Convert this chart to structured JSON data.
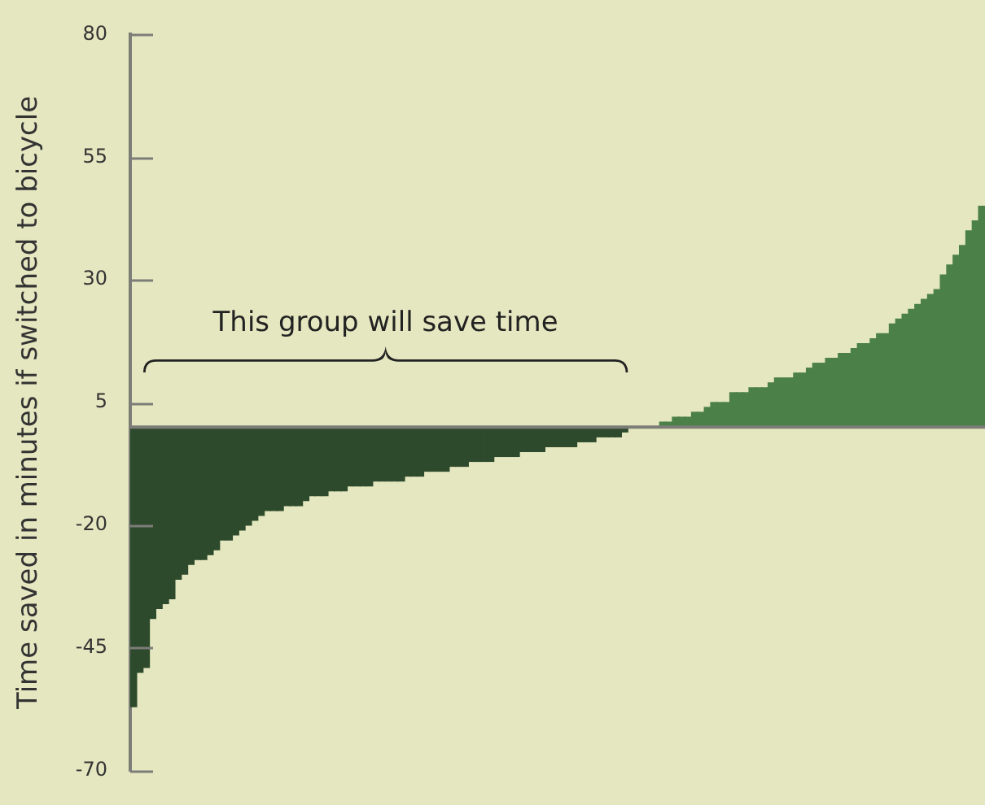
{
  "chart_data": {
    "type": "bar",
    "ylabel": "Time saved in minutes if switched to bicycle",
    "annotations": [
      "This group will save time"
    ],
    "categories": [
      null,
      null,
      null,
      null,
      null,
      null,
      null,
      null,
      null,
      null,
      null,
      null,
      null,
      null,
      null,
      null,
      null,
      null,
      null,
      null,
      null,
      null,
      null,
      null,
      null,
      null,
      null,
      null,
      null,
      null,
      null,
      null,
      null,
      null,
      null,
      null,
      null,
      null,
      null,
      null,
      null,
      null,
      null,
      null,
      null,
      null,
      null,
      null,
      null,
      null,
      null,
      null,
      null,
      null,
      null,
      null,
      null,
      null,
      null,
      null,
      null,
      null,
      null,
      null,
      null,
      null,
      null,
      null,
      null,
      null,
      null,
      null,
      null,
      null,
      null,
      null,
      null,
      null,
      null,
      null,
      null,
      null,
      null,
      null,
      null,
      null,
      null,
      null,
      null,
      null,
      null,
      null,
      null,
      null,
      null,
      null,
      null,
      null,
      null,
      null,
      null,
      null,
      null,
      null,
      null,
      null,
      null,
      null,
      null,
      null,
      null,
      null,
      null,
      null,
      null,
      null,
      null,
      null,
      null,
      null,
      null,
      null,
      null,
      null,
      null,
      null,
      null,
      null,
      null,
      null,
      null,
      null,
      null,
      null
    ],
    "series": [
      {
        "colors": [
          "#2d4a2c",
          "#2d4a2c",
          "#2d4a2c",
          "#2d4a2c",
          "#2d4a2c",
          "#2d4a2c",
          "#2d4a2c",
          "#2d4a2c",
          "#2d4a2c",
          "#2d4a2c",
          "#2d4a2c",
          "#2d4a2c",
          "#2d4a2c",
          "#2d4a2c",
          "#2d4a2c",
          "#2d4a2c",
          "#2d4a2c",
          "#2d4a2c",
          "#2d4a2c",
          "#2d4a2c",
          "#2d4a2c",
          "#2d4a2c",
          "#2d4a2c",
          "#2d4a2c",
          "#2d4a2c",
          "#2d4a2c",
          "#2d4a2c",
          "#2d4a2c",
          "#2d4a2c",
          "#2d4a2c",
          "#2d4a2c",
          "#2d4a2c",
          "#2d4a2c",
          "#2d4a2c",
          "#2d4a2c",
          "#2d4a2c",
          "#2d4a2c",
          "#2d4a2c",
          "#2d4a2c",
          "#2d4a2c",
          "#2d4a2c",
          "#2d4a2c",
          "#2d4a2c",
          "#2d4a2c",
          "#2d4a2c",
          "#2d4a2c",
          "#2d4a2c",
          "#2d4a2c",
          "#2d4a2c",
          "#2d4a2c",
          "#2d4a2c",
          "#2d4a2c",
          "#2d4a2c",
          "#2d4a2c",
          "#2d4a2c",
          "#2d4a2c",
          "#2d4a2c",
          "#2d4a2c",
          "#2d4a2c",
          "#2d4a2c",
          "#2d4a2c",
          "#2d4a2c",
          "#2d4a2c",
          "#2d4a2c",
          "#2d4a2c",
          "#2d4a2c",
          "#2d4a2c",
          "#2d4a2c",
          "#2d4a2c",
          "#2d4a2c",
          "#2d4a2c",
          "#2d4a2c",
          "#2d4a2c",
          "#2d4a2c",
          "#2d4a2c",
          "#2d4a2c",
          "#2d4a2c",
          "#2d4a2c",
          "#2d4a2c",
          "#2d4a2c",
          "#4c8049",
          "#4c8049",
          "#4c8049",
          "#4c8049",
          "#4c8049",
          "#4c8049",
          "#4c8049",
          "#4c8049",
          "#4c8049",
          "#4c8049",
          "#4c8049",
          "#4c8049",
          "#4c8049",
          "#4c8049",
          "#4c8049",
          "#4c8049",
          "#4c8049",
          "#4c8049",
          "#4c8049",
          "#4c8049",
          "#4c8049",
          "#4c8049",
          "#4c8049",
          "#4c8049",
          "#4c8049",
          "#4c8049",
          "#4c8049",
          "#4c8049",
          "#4c8049",
          "#4c8049",
          "#4c8049",
          "#4c8049",
          "#4c8049",
          "#4c8049",
          "#4c8049",
          "#4c8049",
          "#4c8049",
          "#4c8049",
          "#4c8049",
          "#4c8049",
          "#4c8049",
          "#4c8049",
          "#4c8049",
          "#4c8049",
          "#4c8049",
          "#4c8049",
          "#4c8049",
          "#4c8049",
          "#4c8049",
          "#4c8049",
          "#4c8049",
          "#4c8049",
          "#4c8049",
          "#4c8049"
        ],
        "values": [
          -57,
          -50,
          -49,
          -39,
          -37,
          -36,
          -35,
          -31,
          -30,
          -28,
          -27,
          -27,
          -26,
          -25,
          -23,
          -23,
          -22,
          -21,
          -20,
          -19,
          -18,
          -17,
          -17,
          -17,
          -16,
          -16,
          -16,
          -15,
          -14,
          -14,
          -14,
          -13,
          -13,
          -13,
          -12,
          -12,
          -12,
          -12,
          -11,
          -11,
          -11,
          -11,
          -11,
          -10,
          -10,
          -10,
          -9,
          -9,
          -9,
          -9,
          -8,
          -8,
          -8,
          -7,
          -7,
          -7,
          -7,
          -6,
          -6,
          -6,
          -6,
          -5,
          -5,
          -5,
          -5,
          -4,
          -4,
          -4,
          -4,
          -4,
          -3,
          -3,
          -3,
          -2,
          -2,
          -2,
          -2,
          -1,
          0,
          0,
          0,
          0,
          0,
          1,
          1,
          2,
          2,
          2,
          3,
          3,
          4,
          5,
          5,
          5,
          7,
          7,
          7,
          8,
          8,
          8,
          9,
          10,
          10,
          10,
          11,
          11,
          12,
          13,
          13,
          14,
          14,
          15,
          15,
          16,
          17,
          17,
          18,
          19,
          19,
          21,
          22,
          23,
          24,
          25,
          26,
          27,
          28,
          31,
          33,
          35,
          37,
          40,
          42,
          45
        ]
      }
    ],
    "ylim": [
      -70,
      80
    ],
    "yticks": [
      -70,
      -45,
      -20,
      5,
      30,
      55,
      80
    ],
    "ref_lines": [
      {
        "axis": "y",
        "value": 0,
        "color": "#7d7d78"
      }
    ],
    "grid": false,
    "legend": false,
    "tick_labels": "y"
  }
}
